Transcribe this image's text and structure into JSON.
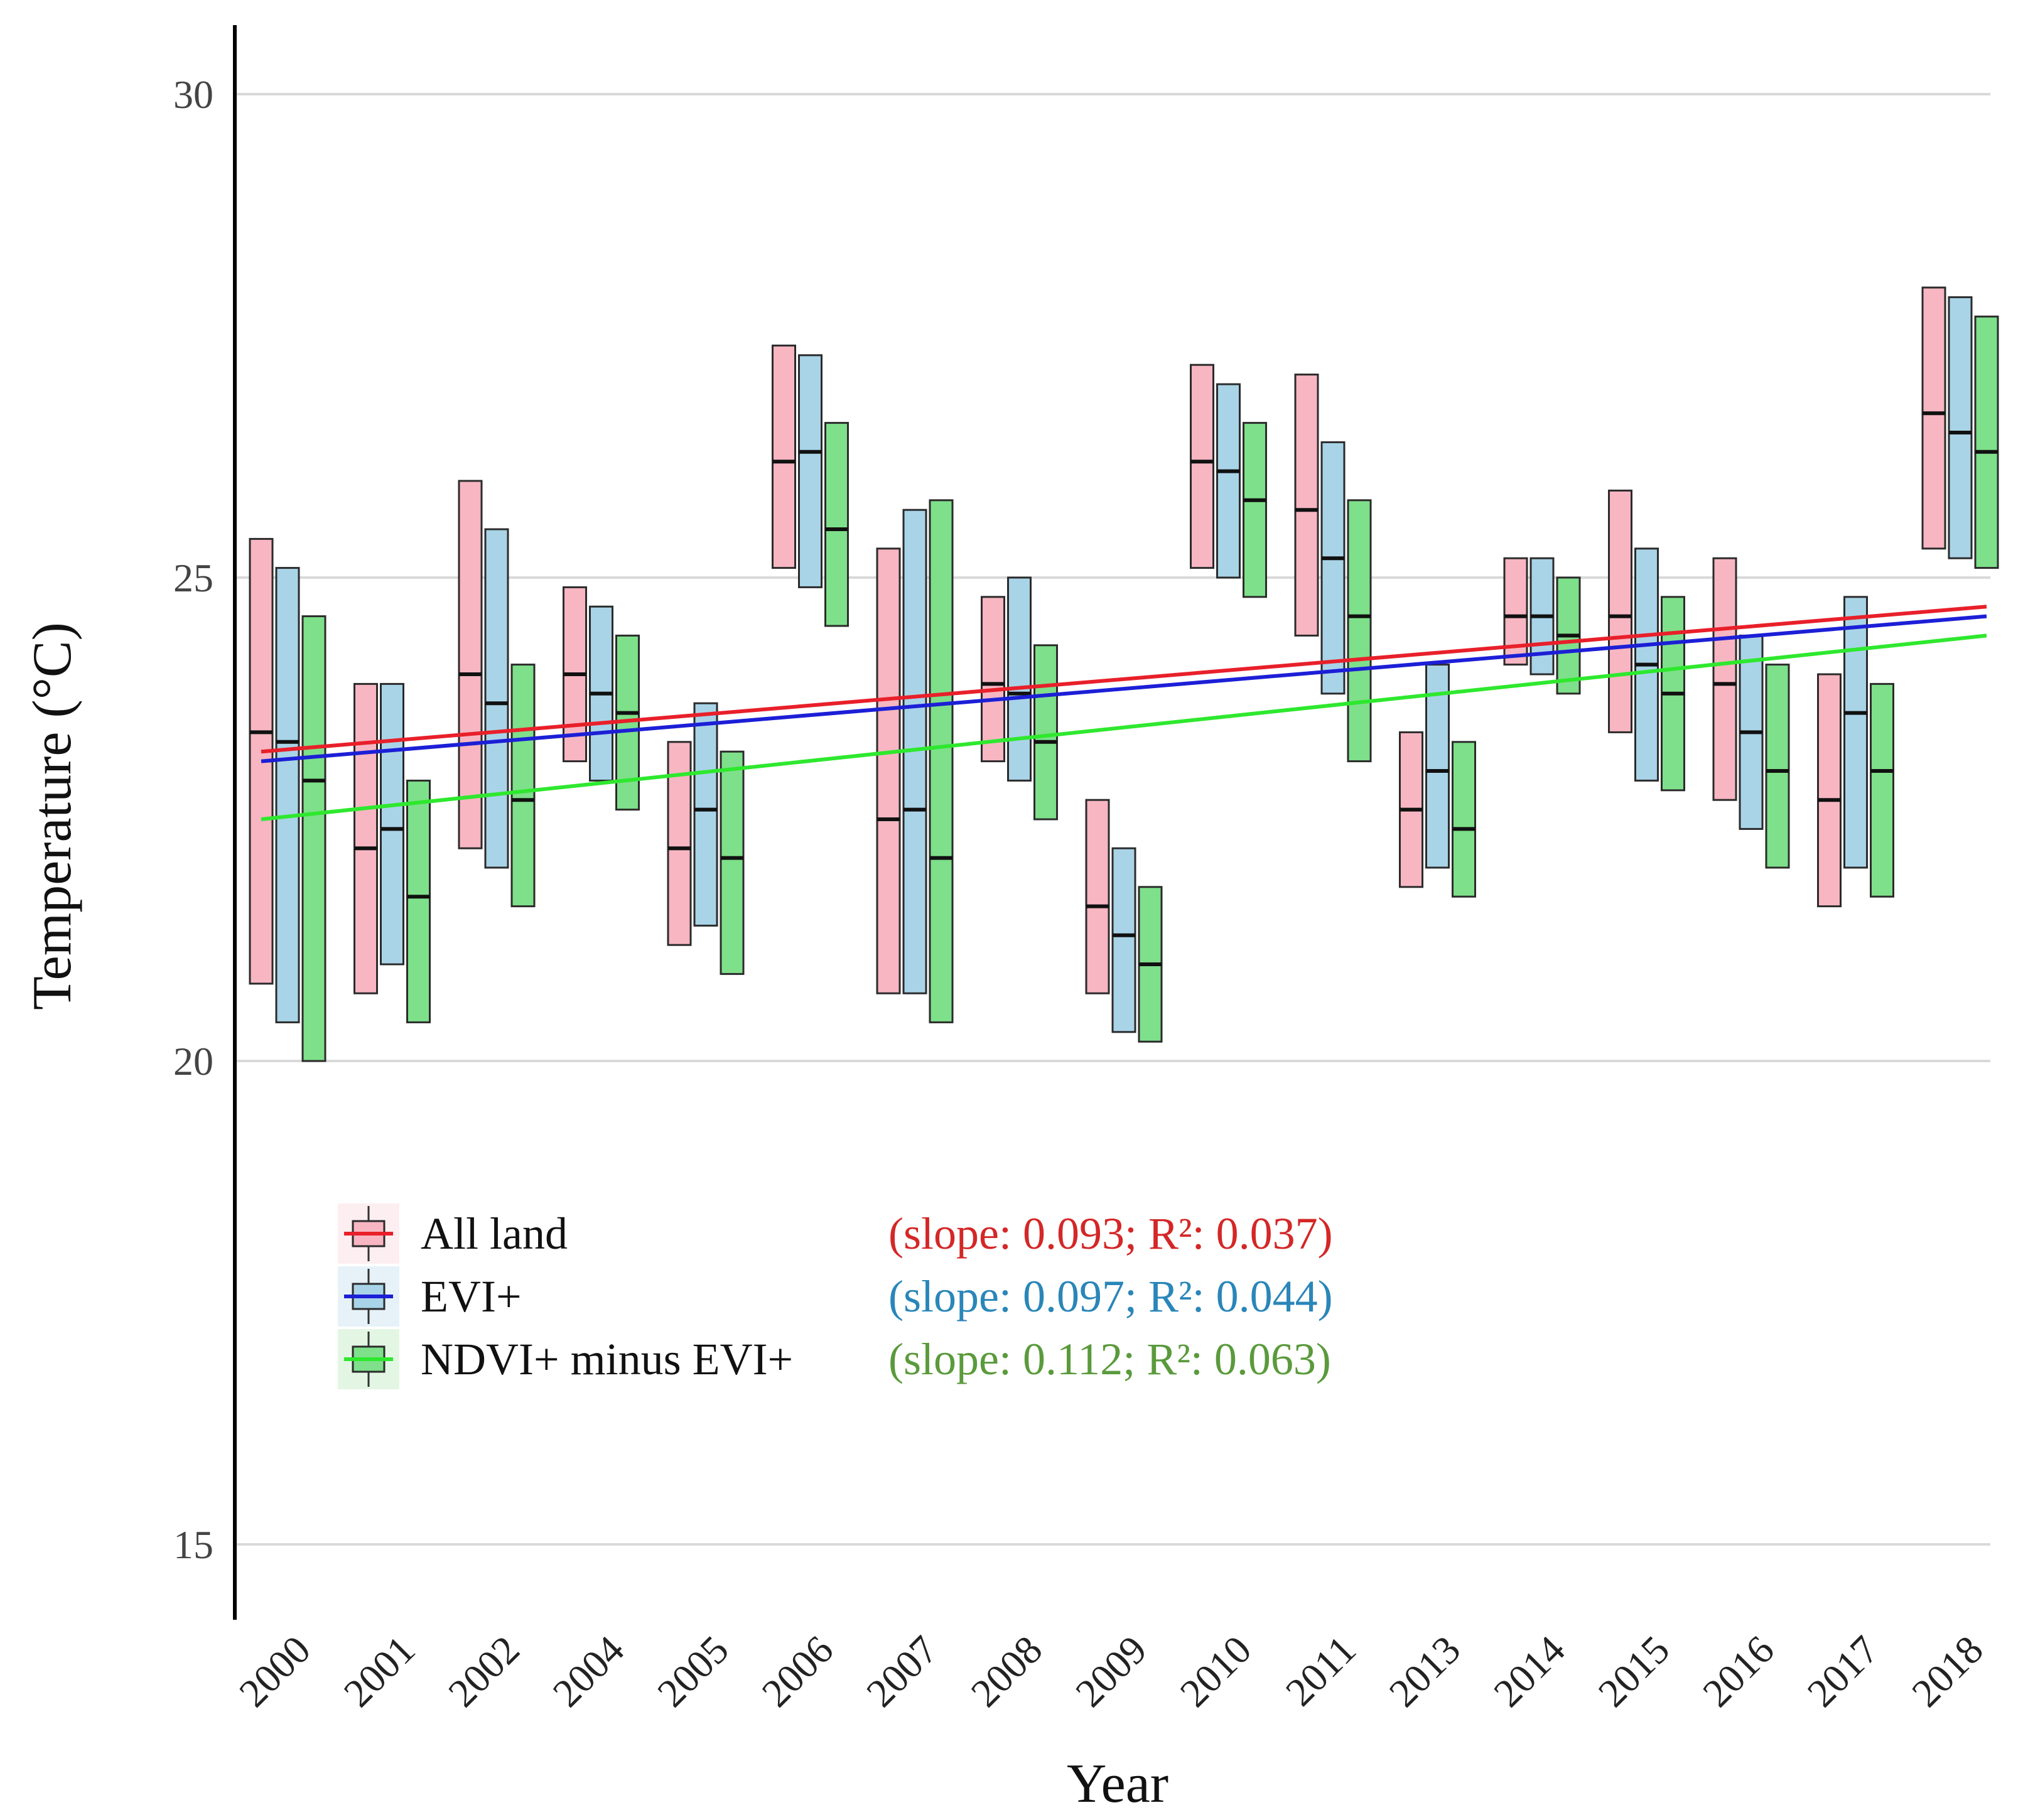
{
  "chart_data": {
    "type": "box",
    "title": "",
    "xlabel": "Year",
    "ylabel": "Temperature (°C)",
    "ylim": [
      14.3,
      30.8
    ],
    "yticks": [
      15,
      20,
      25,
      30
    ],
    "ytick_labels": [
      "15",
      "20",
      "25",
      "30"
    ],
    "grid": "horizontal",
    "legend_position": "bottom-left",
    "categories": [
      "2000",
      "2001",
      "2002",
      "2004",
      "2005",
      "2006",
      "2007",
      "2008",
      "2009",
      "2010",
      "2011",
      "2013",
      "2014",
      "2015",
      "2016",
      "2017",
      "2018"
    ],
    "series": [
      {
        "name": "All land",
        "fill": "#f7b6c2",
        "line_color": "#e8202a",
        "trend": {
          "start": 23.2,
          "end": 24.7
        },
        "boxes": [
          {
            "low": 20.8,
            "median": 23.4,
            "high": 25.4
          },
          {
            "low": 20.7,
            "median": 22.2,
            "high": 23.9
          },
          {
            "low": 22.2,
            "median": 24.0,
            "high": 26.0
          },
          {
            "low": 23.1,
            "median": 24.0,
            "high": 24.9
          },
          {
            "low": 21.2,
            "median": 22.2,
            "high": 23.3
          },
          {
            "low": 25.1,
            "median": 26.2,
            "high": 27.4
          },
          {
            "low": 20.7,
            "median": 22.5,
            "high": 25.3
          },
          {
            "low": 23.1,
            "median": 23.9,
            "high": 24.8
          },
          {
            "low": 20.7,
            "median": 21.6,
            "high": 22.7
          },
          {
            "low": 25.1,
            "median": 26.2,
            "high": 27.2
          },
          {
            "low": 24.4,
            "median": 25.7,
            "high": 27.1
          },
          {
            "low": 21.8,
            "median": 22.6,
            "high": 23.4
          },
          {
            "low": 24.1,
            "median": 24.6,
            "high": 25.2
          },
          {
            "low": 23.4,
            "median": 24.6,
            "high": 25.9
          },
          {
            "low": 22.7,
            "median": 23.9,
            "high": 25.2
          },
          {
            "low": 21.6,
            "median": 22.7,
            "high": 24.0
          },
          {
            "low": 25.3,
            "median": 26.7,
            "high": 28.0
          }
        ]
      },
      {
        "name": "EVI+",
        "fill": "#a9d4e8",
        "line_color": "#1c1fd6",
        "trend": {
          "start": 23.1,
          "end": 24.6
        },
        "boxes": [
          {
            "low": 20.4,
            "median": 23.3,
            "high": 25.1
          },
          {
            "low": 21.0,
            "median": 22.4,
            "high": 23.9
          },
          {
            "low": 22.0,
            "median": 23.7,
            "high": 25.5
          },
          {
            "low": 22.9,
            "median": 23.8,
            "high": 24.7
          },
          {
            "low": 21.4,
            "median": 22.6,
            "high": 23.7
          },
          {
            "low": 24.9,
            "median": 26.3,
            "high": 27.3
          },
          {
            "low": 20.7,
            "median": 22.6,
            "high": 25.7
          },
          {
            "low": 22.9,
            "median": 23.8,
            "high": 25.0
          },
          {
            "low": 20.3,
            "median": 21.3,
            "high": 22.2
          },
          {
            "low": 25.0,
            "median": 26.1,
            "high": 27.0
          },
          {
            "low": 23.8,
            "median": 25.2,
            "high": 26.4
          },
          {
            "low": 22.0,
            "median": 23.0,
            "high": 24.1
          },
          {
            "low": 24.0,
            "median": 24.6,
            "high": 25.2
          },
          {
            "low": 22.9,
            "median": 24.1,
            "high": 25.3
          },
          {
            "low": 22.4,
            "median": 23.4,
            "high": 24.4
          },
          {
            "low": 22.0,
            "median": 23.6,
            "high": 24.8
          },
          {
            "low": 25.2,
            "median": 26.5,
            "high": 27.9
          }
        ]
      },
      {
        "name": "NDVI+ minus EVI+",
        "fill": "#7ee08a",
        "line_color": "#2ee82e",
        "trend": {
          "start": 22.5,
          "end": 24.4
        },
        "boxes": [
          {
            "low": 20.0,
            "median": 22.9,
            "high": 24.6
          },
          {
            "low": 20.4,
            "median": 21.7,
            "high": 22.9
          },
          {
            "low": 21.6,
            "median": 22.7,
            "high": 24.1
          },
          {
            "low": 22.6,
            "median": 23.6,
            "high": 24.4
          },
          {
            "low": 20.9,
            "median": 22.1,
            "high": 23.2
          },
          {
            "low": 24.5,
            "median": 25.5,
            "high": 26.6
          },
          {
            "low": 20.4,
            "median": 22.1,
            "high": 25.8
          },
          {
            "low": 22.5,
            "median": 23.3,
            "high": 24.3
          },
          {
            "low": 20.2,
            "median": 21.0,
            "high": 21.8
          },
          {
            "low": 24.8,
            "median": 25.8,
            "high": 26.6
          },
          {
            "low": 23.1,
            "median": 24.6,
            "high": 25.8
          },
          {
            "low": 21.7,
            "median": 22.4,
            "high": 23.3
          },
          {
            "low": 23.8,
            "median": 24.4,
            "high": 25.0
          },
          {
            "low": 22.8,
            "median": 23.8,
            "high": 24.8
          },
          {
            "low": 22.0,
            "median": 23.0,
            "high": 24.1
          },
          {
            "low": 21.7,
            "median": 23.0,
            "high": 23.9
          },
          {
            "low": 25.1,
            "median": 26.3,
            "high": 27.7
          }
        ]
      }
    ],
    "legend": [
      {
        "label": "All land",
        "stats": "(slope: 0.093; R²: 0.037)",
        "stats_color": "#d42727"
      },
      {
        "label": "EVI+",
        "stats": "(slope: 0.097; R²: 0.044)",
        "stats_color": "#2a86b8"
      },
      {
        "label": "NDVI+ minus EVI+",
        "stats": "(slope: 0.112; R²: 0.063)",
        "stats_color": "#5a9a3c"
      }
    ]
  }
}
